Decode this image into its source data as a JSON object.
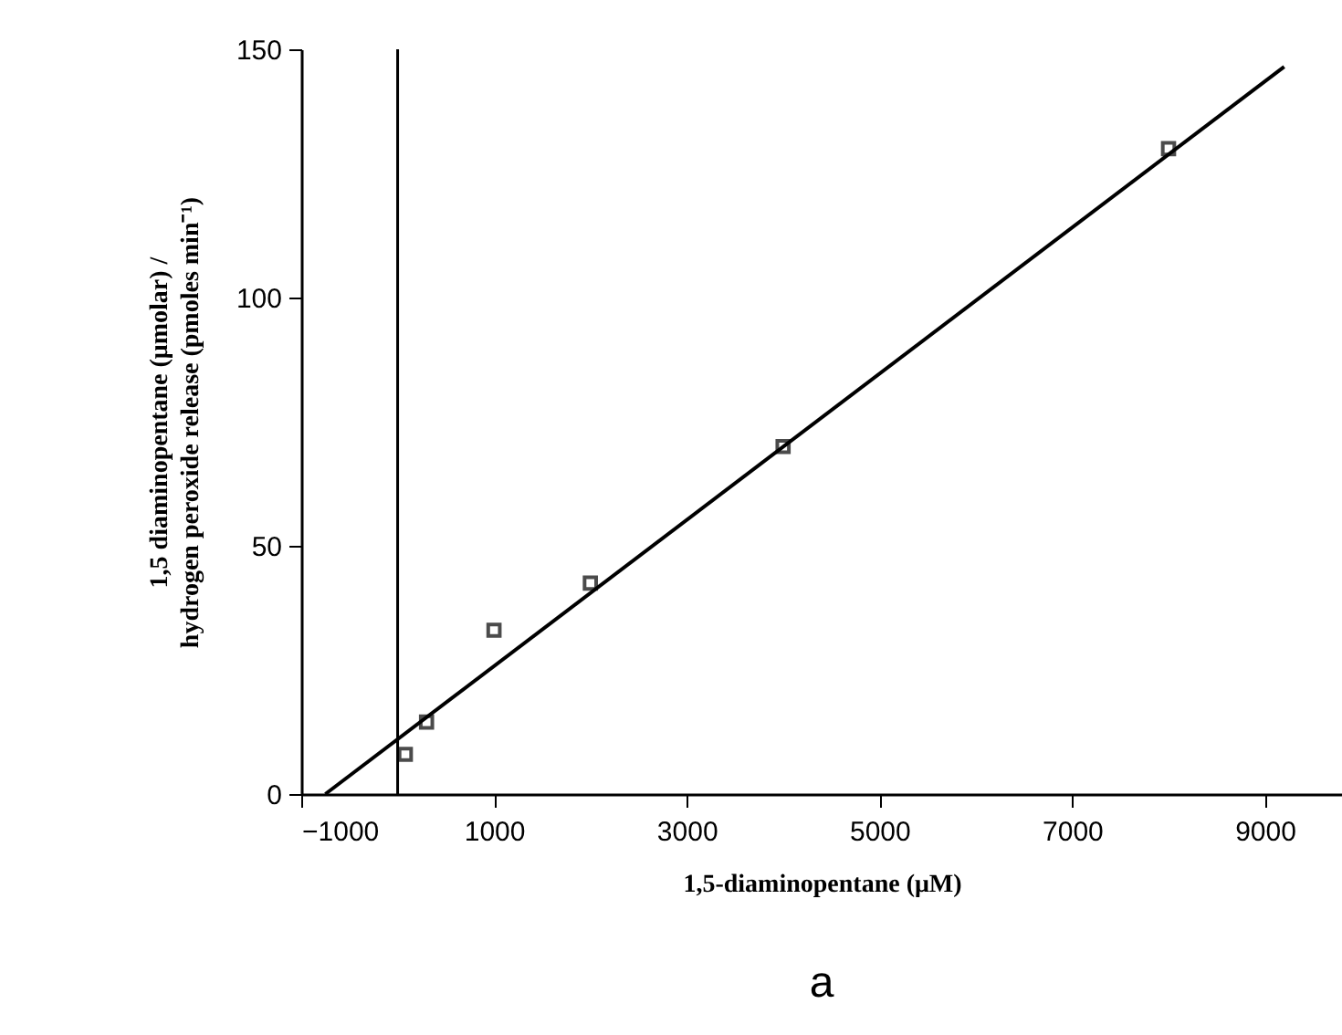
{
  "chart_data": {
    "type": "scatter",
    "xlabel": "1,5-diaminopentane   (μM)",
    "ylabel": "1,5 diaminopentane (μmolar) /\nhydrogen peroxide release (pmoles min⁻¹)",
    "x": [
      80,
      300,
      1000,
      2000,
      4000,
      8000
    ],
    "series": [
      {
        "color": "#000000",
        "marker": "square",
        "values": [
          8,
          14.5,
          33,
          42.5,
          70,
          130
        ]
      },
      {
        "type": "line",
        "color": "#000000",
        "line_style": "solid",
        "x": [
          -750,
          9200
        ],
        "values": [
          0,
          146.5
        ]
      }
    ],
    "xlim": [
      -1000,
      9800
    ],
    "xticks": [
      -1000,
      1000,
      3000,
      5000,
      7000,
      9000
    ],
    "ylim": [
      0,
      150
    ],
    "yticks": [
      0,
      50,
      100,
      150
    ],
    "ref_lines": [
      {
        "axis": "x",
        "value": 0,
        "color": "#000000"
      }
    ],
    "grid": false,
    "annotations": [
      "a"
    ]
  }
}
